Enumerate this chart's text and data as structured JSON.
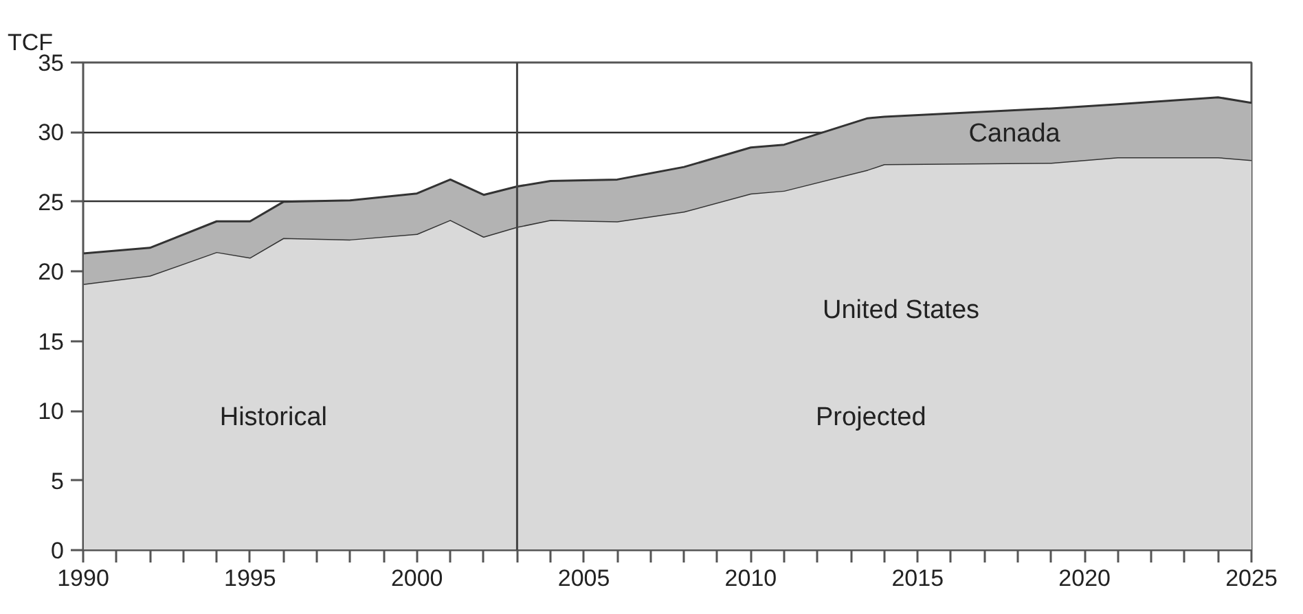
{
  "chart_data": {
    "type": "area",
    "stacked": true,
    "ylabel": "TCF",
    "x": [
      1990,
      1992,
      1994,
      1995,
      1996,
      1998,
      2000,
      2001,
      2002,
      2003,
      2004,
      2006,
      2008,
      2010,
      2011,
      2013.5,
      2014,
      2019,
      2021,
      2024,
      2025
    ],
    "series": [
      {
        "name": "United States",
        "color": "#d9d9d9",
        "values": [
          19.1,
          19.7,
          21.4,
          21.0,
          22.4,
          22.3,
          22.7,
          23.7,
          22.5,
          23.2,
          23.7,
          23.6,
          24.3,
          25.6,
          25.8,
          27.3,
          27.7,
          27.8,
          28.2,
          28.2,
          28.0
        ]
      },
      {
        "name": "Canada",
        "color": "#b3b3b3",
        "values": [
          2.2,
          2.0,
          2.2,
          2.6,
          2.6,
          2.8,
          2.9,
          2.9,
          3.0,
          2.9,
          2.8,
          3.0,
          3.2,
          3.3,
          3.3,
          3.7,
          3.4,
          3.9,
          3.8,
          4.3,
          4.1
        ]
      }
    ],
    "xlim": [
      1990,
      2025
    ],
    "xticks": [
      1990,
      {
        "value": 1991,
        "label": null
      },
      {
        "value": 1992,
        "label": null
      },
      {
        "value": 1993,
        "label": null
      },
      {
        "value": 1994,
        "label": null
      },
      1995,
      {
        "value": 1996,
        "label": null
      },
      {
        "value": 1997,
        "label": null
      },
      {
        "value": 1998,
        "label": null
      },
      {
        "value": 1999,
        "label": null
      },
      2000,
      {
        "value": 2001,
        "label": null
      },
      {
        "value": 2002,
        "label": null
      },
      {
        "value": 2003,
        "label": null
      },
      {
        "value": 2004,
        "label": null
      },
      2005,
      {
        "value": 2006,
        "label": null
      },
      {
        "value": 2007,
        "label": null
      },
      {
        "value": 2008,
        "label": null
      },
      {
        "value": 2009,
        "label": null
      },
      2010,
      {
        "value": 2011,
        "label": null
      },
      {
        "value": 2012,
        "label": null
      },
      {
        "value": 2013,
        "label": null
      },
      {
        "value": 2014,
        "label": null
      },
      2015,
      {
        "value": 2016,
        "label": null
      },
      {
        "value": 2017,
        "label": null
      },
      {
        "value": 2018,
        "label": null
      },
      {
        "value": 2019,
        "label": null
      },
      2020,
      {
        "value": 2021,
        "label": null
      },
      {
        "value": 2022,
        "label": null
      },
      {
        "value": 2023,
        "label": null
      },
      {
        "value": 2024,
        "label": null
      },
      2025
    ],
    "ylim": [
      0,
      35
    ],
    "yticks": [
      0,
      5,
      10,
      15,
      20,
      25,
      30,
      35
    ],
    "grid": "y",
    "ref_lines": [
      {
        "axis": "x",
        "value": 2003
      }
    ],
    "annotations": [
      "Historical",
      "Projected"
    ]
  }
}
